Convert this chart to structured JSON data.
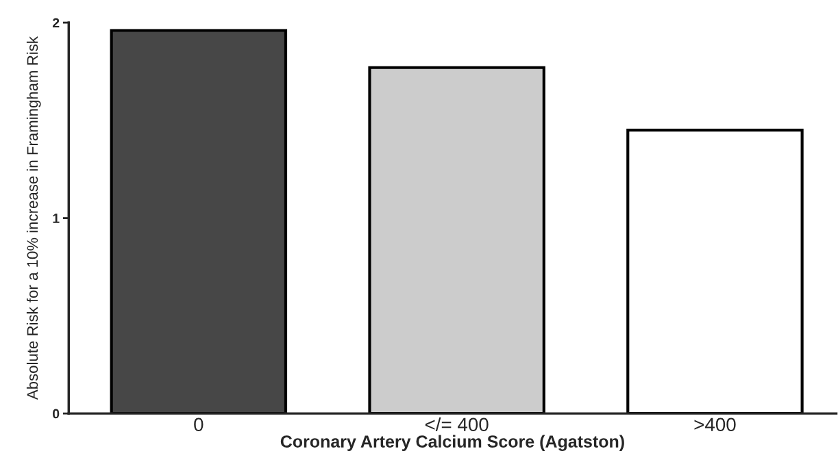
{
  "chart_data": {
    "type": "bar",
    "xlabel": "Coronary Artery Calcium Score (Agatston)",
    "ylabel": "Absolute Risk for a 10% increase in Framingham Risk",
    "categories": [
      "0",
      "</= 400",
      ">400"
    ],
    "values": [
      1.96,
      1.77,
      1.45
    ],
    "colors": [
      "#474747",
      "#cccccc",
      "#ffffff"
    ],
    "ylim": [
      0,
      2
    ],
    "yticks": [
      0,
      1,
      2
    ],
    "grid": false
  }
}
